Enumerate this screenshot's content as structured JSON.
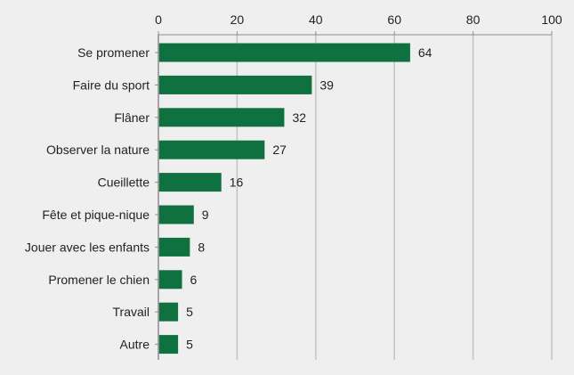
{
  "chart_data": {
    "type": "bar",
    "orientation": "horizontal",
    "title": "",
    "xlabel": "",
    "ylabel": "",
    "xlim": [
      0,
      100
    ],
    "ticks": [
      0,
      20,
      40,
      60,
      80,
      100
    ],
    "tick_position": "top",
    "grid": true,
    "legend": "none",
    "data_labels": true,
    "categories": [
      "Se promener",
      "Faire du sport",
      "Flâner",
      "Observer la nature",
      "Cueillette",
      "Fête et pique-nique",
      "Jouer avec les enfants",
      "Promener le chien",
      "Travail",
      "Autre"
    ],
    "values": [
      64,
      39,
      32,
      27,
      16,
      9,
      8,
      6,
      5,
      5
    ],
    "colors": {
      "bar": "#0f7040",
      "gridline": "#c6c6c6",
      "axis": "#8c8c8c",
      "background": "#efefef"
    }
  }
}
